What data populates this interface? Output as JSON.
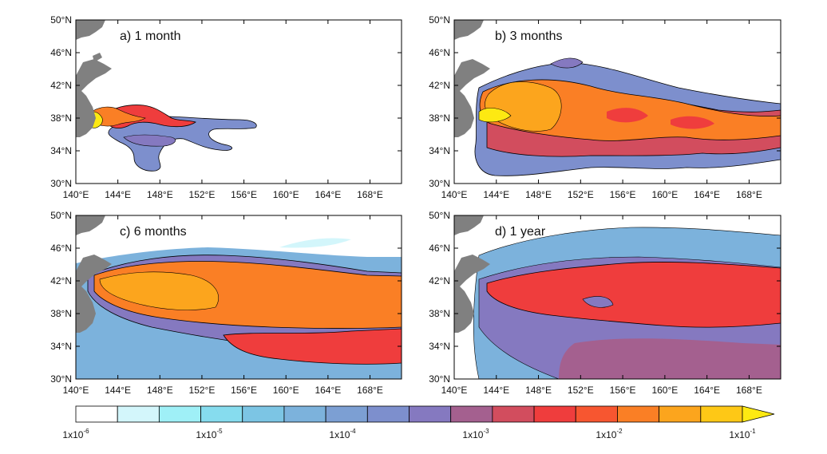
{
  "panels": [
    {
      "id": "a",
      "title": "a)  1 month"
    },
    {
      "id": "b",
      "title": "b)  3 months"
    },
    {
      "id": "c",
      "title": "c)  6 months"
    },
    {
      "id": "d",
      "title": "d)  1 year"
    }
  ],
  "axes": {
    "lat_labels": [
      "50°N",
      "46°N",
      "42°N",
      "38°N",
      "34°N",
      "30°N"
    ],
    "lon_labels": [
      "140°E",
      "144°E",
      "148°E",
      "152°E",
      "156°E",
      "160°E",
      "164°E",
      "168°E"
    ],
    "lat_range": [
      30,
      50
    ],
    "lon_range": [
      140,
      171
    ]
  },
  "colorbar": {
    "label_bases": [
      "1x10",
      "1x10",
      "1x10",
      "1x10",
      "1x10",
      "1x10"
    ],
    "label_exponents": [
      "-6",
      "-5",
      "-4",
      "-3",
      "-2",
      "-1"
    ],
    "colors": [
      "#ffffff",
      "#d3f6fb",
      "#9ff0f7",
      "#86dcee",
      "#7cc5e4",
      "#7cb2dc",
      "#7c9fd3",
      "#7d8fcd",
      "#8579c0",
      "#a4608f",
      "#d24d5e",
      "#ef3d3d",
      "#f75630",
      "#fa7f25",
      "#fca51d",
      "#fec816",
      "#fde912"
    ]
  },
  "colors": {
    "land": "#808080",
    "ocean_bg": "#ffffff",
    "contour_line": "#000000"
  }
}
